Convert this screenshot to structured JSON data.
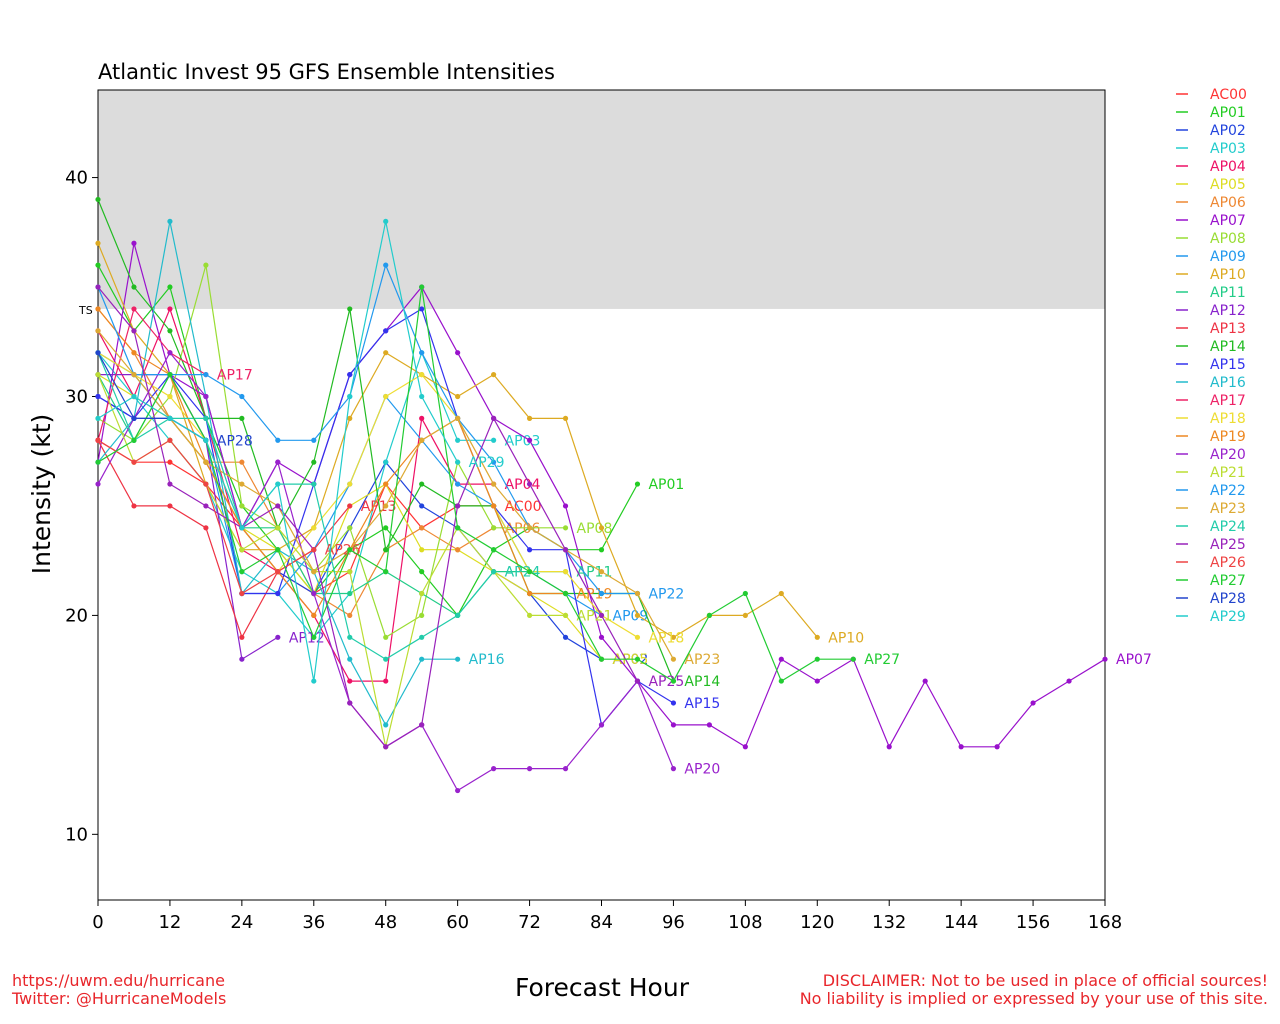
{
  "footer": {
    "url": "https://uwm.edu/hurricane",
    "twitter": "Twitter: @HurricaneModels",
    "disclaimer_1": "DISCLAIMER: Not to be used in place of official sources!",
    "disclaimer_2": "No liability is implied or expressed by your use of this site."
  },
  "chart_data": {
    "type": "line",
    "title": "Atlantic Invest 95 GFS Ensemble Intensities",
    "xlabel": "Forecast Hour",
    "ylabel": "Intensity (kt)",
    "xlim": [
      0,
      168
    ],
    "ylim": [
      7,
      44
    ],
    "xticks": [
      0,
      12,
      24,
      36,
      48,
      60,
      72,
      84,
      96,
      108,
      120,
      132,
      144,
      156,
      168
    ],
    "yticks": [
      10,
      20,
      30,
      40
    ],
    "threshold": {
      "label": "TS",
      "value": 34,
      "shade_color": "#dcdcdc"
    },
    "legend_position": "right",
    "series": [
      {
        "name": "AC00",
        "color": "#ff3333",
        "x": [
          0,
          6,
          12,
          18,
          24,
          30,
          36,
          42,
          48,
          54,
          60,
          66
        ],
        "y": [
          28,
          27,
          27,
          26,
          24,
          22,
          21,
          22,
          26,
          24,
          25,
          25
        ]
      },
      {
        "name": "AP01",
        "color": "#22cc22",
        "x": [
          0,
          6,
          12,
          18,
          24,
          30,
          36,
          42,
          48,
          54,
          60,
          66,
          72,
          78,
          84,
          90
        ],
        "y": [
          36,
          33,
          35,
          29,
          25,
          23,
          21,
          23,
          24,
          22,
          20,
          23,
          24,
          23,
          23,
          26
        ]
      },
      {
        "name": "AP02",
        "color": "#2244dd",
        "x": [
          0,
          6,
          12,
          18,
          24,
          30,
          36,
          42,
          48,
          54,
          60,
          66,
          72,
          78,
          84
        ],
        "y": [
          30,
          29,
          29,
          27,
          24,
          22,
          21,
          24,
          27,
          25,
          24,
          22,
          21,
          19,
          18
        ]
      },
      {
        "name": "AP03",
        "color": "#22cccc",
        "x": [
          0,
          6,
          12,
          18,
          24,
          30,
          36,
          42,
          48,
          54,
          60,
          66
        ],
        "y": [
          32,
          30,
          28,
          26,
          22,
          21,
          19,
          21,
          27,
          32,
          28,
          28
        ]
      },
      {
        "name": "AP04",
        "color": "#ee1166",
        "x": [
          0,
          6,
          12,
          18,
          24,
          30,
          36,
          42,
          48,
          54,
          60,
          66
        ],
        "y": [
          33,
          30,
          34,
          29,
          23,
          22,
          20,
          17,
          17,
          29,
          26,
          26
        ]
      },
      {
        "name": "AP05",
        "color": "#dddd22",
        "x": [
          0,
          6,
          12,
          18,
          24,
          30,
          36,
          42,
          48,
          54,
          60,
          66,
          72,
          78,
          84
        ],
        "y": [
          31,
          30,
          29,
          27,
          24,
          23,
          21,
          25,
          26,
          23,
          23,
          22,
          21,
          20,
          18
        ]
      },
      {
        "name": "AP06",
        "color": "#ee8833",
        "x": [
          0,
          6,
          12,
          18,
          24,
          30,
          36,
          42,
          48,
          54,
          60,
          66
        ],
        "y": [
          34,
          32,
          29,
          27,
          27,
          24,
          21,
          20,
          23,
          24,
          23,
          24
        ]
      },
      {
        "name": "AP07",
        "color": "#9911cc",
        "x": [
          0,
          6,
          12,
          18,
          24,
          30,
          36,
          42,
          48,
          54,
          60,
          66,
          72,
          78,
          84,
          90,
          96,
          102,
          108,
          114,
          120,
          126,
          132,
          138,
          144,
          150,
          156,
          162,
          168
        ],
        "y": [
          27,
          37,
          31,
          30,
          24,
          27,
          26,
          31,
          33,
          35,
          32,
          29,
          28,
          25,
          19,
          17,
          15,
          15,
          14,
          18,
          17,
          18,
          14,
          17,
          14,
          14,
          16,
          17,
          18
        ]
      },
      {
        "name": "AP08",
        "color": "#99dd33",
        "x": [
          0,
          6,
          12,
          18,
          24,
          30,
          36,
          42,
          48,
          54,
          60,
          66,
          72,
          78
        ],
        "y": [
          29,
          28,
          30,
          36,
          25,
          24,
          22,
          24,
          19,
          20,
          27,
          24,
          24,
          24
        ]
      },
      {
        "name": "AP09",
        "color": "#2299ee",
        "x": [
          0,
          6,
          12,
          18,
          24,
          30,
          36,
          42,
          48,
          54,
          60,
          66,
          72,
          78,
          84
        ],
        "y": [
          32,
          31,
          29,
          28,
          21,
          21,
          23,
          26,
          30,
          28,
          26,
          25,
          22,
          21,
          20
        ]
      },
      {
        "name": "AP10",
        "color": "#ddaa22",
        "x": [
          0,
          6,
          12,
          18,
          24,
          30,
          36,
          42,
          48,
          54,
          60,
          66,
          72,
          78,
          84,
          90,
          96,
          102,
          108,
          114,
          120
        ],
        "y": [
          37,
          33,
          31,
          26,
          23,
          23,
          24,
          29,
          32,
          31,
          30,
          31,
          29,
          29,
          24,
          20,
          19,
          20,
          20,
          21,
          19
        ]
      },
      {
        "name": "AP11",
        "color": "#22cc88",
        "x": [
          0,
          6,
          12,
          18,
          24,
          30,
          36,
          42,
          48,
          54,
          60,
          66,
          72,
          78
        ],
        "y": [
          31,
          28,
          31,
          28,
          24,
          24,
          21,
          21,
          22,
          21,
          20,
          22,
          22,
          22
        ]
      },
      {
        "name": "AP12",
        "color": "#8822cc",
        "x": [
          0,
          6,
          12,
          18,
          24,
          30
        ],
        "y": [
          31,
          31,
          31,
          28,
          18,
          19
        ]
      },
      {
        "name": "AP13",
        "color": "#ee3344",
        "x": [
          0,
          6,
          12,
          18,
          24,
          30,
          36,
          42
        ],
        "y": [
          28,
          25,
          25,
          24,
          19,
          22,
          23,
          25
        ]
      },
      {
        "name": "AP14",
        "color": "#22bb22",
        "x": [
          0,
          6,
          12,
          18,
          24,
          30,
          36,
          42,
          48,
          54,
          60,
          66,
          72,
          78,
          84,
          90,
          96
        ],
        "y": [
          39,
          35,
          33,
          29,
          29,
          24,
          27,
          34,
          23,
          26,
          25,
          25,
          21,
          21,
          21,
          21,
          17
        ]
      },
      {
        "name": "AP15",
        "color": "#3333ee",
        "x": [
          0,
          6,
          12,
          18,
          24,
          30,
          36,
          42,
          48,
          54,
          60,
          66,
          72,
          78,
          84,
          90,
          96
        ],
        "y": [
          30,
          29,
          31,
          29,
          21,
          21,
          26,
          31,
          33,
          34,
          29,
          25,
          23,
          23,
          15,
          17,
          16
        ]
      },
      {
        "name": "AP16",
        "color": "#22bbcc",
        "x": [
          0,
          6,
          12,
          18,
          24,
          30,
          36,
          42,
          48,
          54,
          60
        ],
        "y": [
          27,
          29,
          38,
          30,
          21,
          23,
          22,
          18,
          15,
          18,
          18
        ]
      },
      {
        "name": "AP17",
        "color": "#ee2266",
        "x": [
          0,
          6,
          12,
          18
        ],
        "y": [
          28,
          34,
          32,
          31
        ]
      },
      {
        "name": "AP18",
        "color": "#eedd33",
        "x": [
          0,
          6,
          12,
          18,
          24,
          30,
          36,
          42,
          48,
          54,
          60,
          66,
          72,
          78,
          84,
          90
        ],
        "y": [
          32,
          31,
          30,
          28,
          24,
          22,
          24,
          26,
          30,
          31,
          29,
          25,
          22,
          22,
          20,
          19
        ]
      },
      {
        "name": "AP19",
        "color": "#ee8822",
        "x": [
          0,
          6,
          12,
          18,
          24,
          30,
          36,
          42,
          48,
          54,
          60,
          66,
          72,
          78
        ],
        "y": [
          34,
          32,
          31,
          27,
          24,
          22,
          20,
          23,
          26,
          28,
          29,
          25,
          21,
          21
        ]
      },
      {
        "name": "AP20",
        "color": "#9922cc",
        "x": [
          0,
          6,
          12,
          18,
          24,
          30,
          36,
          42,
          48,
          54,
          60,
          66,
          72,
          78,
          84,
          90,
          96
        ],
        "y": [
          26,
          29,
          32,
          30,
          24,
          27,
          21,
          16,
          14,
          15,
          12,
          13,
          13,
          13,
          15,
          17,
          13
        ]
      },
      {
        "name": "AP21",
        "color": "#bbdd33",
        "x": [
          0,
          6,
          12,
          18,
          24,
          30,
          36,
          42,
          48,
          54,
          60,
          66,
          72,
          78
        ],
        "y": [
          31,
          27,
          28,
          26,
          23,
          24,
          22,
          22,
          14,
          21,
          24,
          22,
          20,
          20
        ]
      },
      {
        "name": "AP22",
        "color": "#2299ee",
        "x": [
          0,
          6,
          12,
          18,
          24,
          30,
          36,
          42,
          48,
          54,
          60,
          66,
          72,
          78,
          84,
          90
        ],
        "y": [
          35,
          31,
          31,
          31,
          30,
          28,
          28,
          30,
          36,
          32,
          29,
          27,
          24,
          23,
          21,
          21
        ]
      },
      {
        "name": "AP23",
        "color": "#ddaa33",
        "x": [
          0,
          6,
          12,
          18,
          24,
          30,
          36,
          42,
          48,
          54,
          60,
          66,
          72,
          78,
          84,
          90,
          96
        ],
        "y": [
          33,
          31,
          29,
          27,
          26,
          25,
          22,
          23,
          25,
          28,
          29,
          26,
          24,
          23,
          22,
          21,
          18
        ]
      },
      {
        "name": "AP24",
        "color": "#22ccaa",
        "x": [
          0,
          6,
          12,
          18,
          24,
          30,
          36,
          42,
          48,
          54,
          60,
          66
        ],
        "y": [
          32,
          28,
          29,
          29,
          24,
          26,
          26,
          19,
          18,
          19,
          20,
          22
        ]
      },
      {
        "name": "AP25",
        "color": "#9922bb",
        "x": [
          0,
          6,
          12,
          18,
          24,
          30,
          36,
          42,
          48,
          54,
          60,
          66,
          72,
          78,
          84,
          90
        ],
        "y": [
          35,
          33,
          26,
          25,
          24,
          25,
          23,
          16,
          14,
          15,
          25,
          29,
          26,
          23,
          20,
          17
        ]
      },
      {
        "name": "AP26",
        "color": "#ee4444",
        "x": [
          0,
          6,
          12,
          18,
          24,
          30,
          36
        ],
        "y": [
          28,
          27,
          28,
          26,
          21,
          22,
          23
        ]
      },
      {
        "name": "AP27",
        "color": "#22cc33",
        "x": [
          0,
          6,
          12,
          18,
          24,
          30,
          36,
          42,
          48,
          54,
          60,
          66,
          72,
          78,
          84,
          90,
          96,
          102,
          108,
          114,
          120,
          126
        ],
        "y": [
          27,
          28,
          31,
          28,
          22,
          23,
          19,
          23,
          22,
          35,
          24,
          23,
          22,
          21,
          18,
          18,
          17,
          20,
          21,
          17,
          18,
          18
        ]
      },
      {
        "name": "AP28",
        "color": "#2244cc",
        "x": [
          0,
          6,
          12,
          18
        ],
        "y": [
          32,
          29,
          29,
          28
        ]
      },
      {
        "name": "AP29",
        "color": "#22cccc",
        "x": [
          0,
          6,
          12,
          18,
          24,
          30,
          36,
          42,
          48,
          54,
          60
        ],
        "y": [
          29,
          30,
          29,
          28,
          24,
          26,
          17,
          30,
          38,
          30,
          27
        ]
      }
    ]
  }
}
